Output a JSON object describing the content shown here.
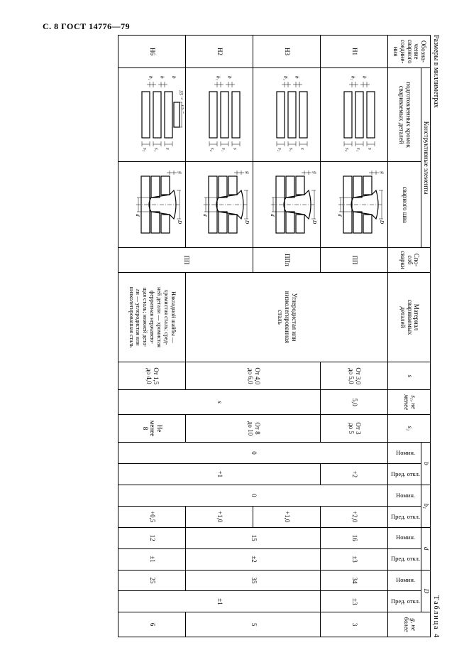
{
  "page_header": "С. 8 ГОСТ 14776—79",
  "units_label": "Размеры в миллиметрах",
  "table_label": "Таблица 4",
  "colors": {
    "line": "#000000",
    "background": "#ffffff"
  },
  "headers": {
    "designation": "Обозна-\nчение\nсварного\nсоедине-\nния",
    "structural": "Конструктивные элементы",
    "prepared_edges": "подготовленных кромок\nсвариваемых деталей",
    "weld_seam": "сварного шва",
    "method": "Спо-\nсоб\nсварки",
    "material": "Материал\nсвариваемых\nдеталей",
    "s": "s",
    "s1": "s₁, не\nменее",
    "s2": "s₂",
    "b": "b",
    "b1": "b₁",
    "d_lower": "d",
    "d_upper": "D",
    "g": "g, не\nболее",
    "nomin": "Номин.",
    "pred_otkl": "Пред. откл."
  },
  "rows": [
    {
      "designation": "Н1",
      "method": "ПП",
      "material": "Углеродистая или\nнизколегированная\nсталь",
      "s": "От 3,0\nдо 5,0",
      "s1": "5,0",
      "s2": "От 3\nдо 5",
      "b_nom": "0",
      "b_pred": "+2",
      "b1_nom": "0",
      "b1_pred": "+2,0",
      "d_nom": "16",
      "d_pred": "±3",
      "D_nom": "34",
      "D_pred": "±3",
      "g": "3",
      "edges_layers": 3,
      "weld_style": "A"
    },
    {
      "designation": "Н3",
      "method": "ППп",
      "material": "Углеродистая или\nнизколегированная\nсталь",
      "s": "От 4,0\nдо 6,0",
      "s1": "s",
      "s2": "От 8\nдо 10",
      "b_nom": "0",
      "b_pred": "+1",
      "b1_nom": "0",
      "b1_pred": "+1,0",
      "d_nom": "15",
      "d_pred": "±2",
      "D_nom": "35",
      "D_pred": "±1",
      "g": "5",
      "edges_layers": 3,
      "weld_style": "A"
    },
    {
      "designation": "Н2",
      "method": "ПП",
      "material": "Углеродистая или\nнизколегированная\nсталь",
      "s": "От 4,0\nдо 6,0",
      "s1": "s",
      "s2": "От 8\nдо 10",
      "b_nom": "0",
      "b_pred": "+1",
      "b1_nom": "0",
      "b1_pred": "+1,0",
      "d_nom": "15",
      "d_pred": "±2",
      "D_nom": "35",
      "D_pred": "±1",
      "g": "5",
      "edges_layers": 3,
      "weld_style": "A"
    },
    {
      "designation": "Н6",
      "method": "ПП",
      "material": "Накладной шайбы —\nхромистая сталь; сред-\nней детали — хромистая\nферритная нержавею-\nщая сталь; нижней дета-\nли — углеродистая или\nнизколегированная сталь",
      "s": "От 1,5\nдо 4,0",
      "s1": "s",
      "s2": "Не\nменее\n8",
      "b_nom": "0",
      "b_pred": "+1",
      "b1_nom": "0",
      "b1_pred": "+0,5",
      "d_nom": "12",
      "d_pred": "±1",
      "D_nom": "25",
      "D_pred": "±1",
      "g": "6",
      "edges_layers": 3,
      "weld_style": "B",
      "washer_dim": "35⁻¹",
      "washer_tol": "15⁺¹"
    }
  ]
}
